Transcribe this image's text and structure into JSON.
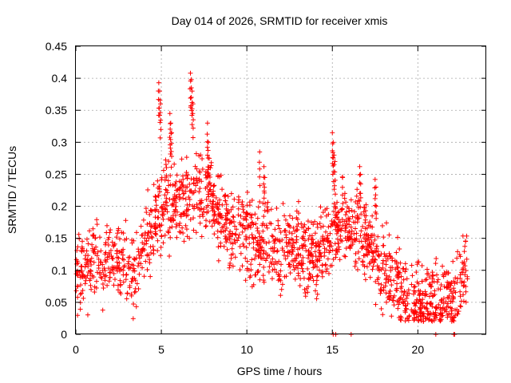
{
  "chart_data": {
    "type": "scatter",
    "title": "Day 014 of 2026, SRMTID for receiver xmis",
    "xlabel": "GPS time / hours",
    "ylabel": "SRMTID / TECUs",
    "xlim": [
      0,
      24
    ],
    "ylim": [
      0,
      0.45
    ],
    "x_ticks": [
      0,
      5,
      10,
      15,
      20
    ],
    "x_tick_labels": [
      "0",
      "5",
      "10",
      "15",
      "20"
    ],
    "y_ticks": [
      0,
      0.05,
      0.1,
      0.15,
      0.2,
      0.25,
      0.3,
      0.35,
      0.4,
      0.45
    ],
    "y_tick_labels": [
      "0",
      "0.05",
      "0.1",
      "0.15",
      "0.2",
      "0.25",
      "0.3",
      "0.35",
      "0.4",
      "0.45"
    ],
    "grid": true,
    "marker": "+",
    "series": [
      {
        "name": "SRMTID",
        "color": "#ff0000",
        "profile": {
          "x": [
            0,
            0.5,
            1,
            1.5,
            2,
            2.5,
            3,
            3.5,
            4,
            4.5,
            5,
            5.5,
            6,
            6.5,
            7,
            7.5,
            8,
            8.5,
            9,
            9.5,
            10,
            10.5,
            11,
            11.5,
            12,
            12.5,
            13,
            13.5,
            14,
            14.5,
            15,
            15.5,
            16,
            16.5,
            17,
            17.5,
            18,
            18.5,
            19,
            19.5,
            20,
            20.5,
            21,
            21.5,
            22,
            22.5,
            22.9
          ],
          "y": [
            0.09,
            0.1,
            0.11,
            0.115,
            0.12,
            0.11,
            0.1,
            0.09,
            0.14,
            0.17,
            0.19,
            0.2,
            0.2,
            0.21,
            0.22,
            0.21,
            0.2,
            0.18,
            0.16,
            0.16,
            0.15,
            0.14,
            0.14,
            0.13,
            0.13,
            0.14,
            0.13,
            0.12,
            0.12,
            0.13,
            0.15,
            0.17,
            0.16,
            0.16,
            0.15,
            0.12,
            0.1,
            0.09,
            0.07,
            0.05,
            0.05,
            0.05,
            0.05,
            0.05,
            0.05,
            0.08,
            0.1
          ]
        },
        "spread": 0.03,
        "sample_count": 1800,
        "seed": 14,
        "peaks": [
          {
            "x": 4.85,
            "y": 0.393
          },
          {
            "x": 4.9,
            "y": 0.38
          },
          {
            "x": 4.95,
            "y": 0.36
          },
          {
            "x": 5.5,
            "y": 0.345
          },
          {
            "x": 5.55,
            "y": 0.33
          },
          {
            "x": 5.6,
            "y": 0.315
          },
          {
            "x": 6.7,
            "y": 0.408
          },
          {
            "x": 6.75,
            "y": 0.398
          },
          {
            "x": 6.8,
            "y": 0.38
          },
          {
            "x": 6.85,
            "y": 0.36
          },
          {
            "x": 7.7,
            "y": 0.33
          },
          {
            "x": 7.75,
            "y": 0.3
          },
          {
            "x": 7.8,
            "y": 0.275
          },
          {
            "x": 10.75,
            "y": 0.285
          },
          {
            "x": 11,
            "y": 0.262
          },
          {
            "x": 11.05,
            "y": 0.245
          },
          {
            "x": 15.0,
            "y": 0.315
          },
          {
            "x": 15.05,
            "y": 0.3
          },
          {
            "x": 15.1,
            "y": 0.28
          },
          {
            "x": 15.15,
            "y": 0.27
          },
          {
            "x": 15.6,
            "y": 0.245
          },
          {
            "x": 16.6,
            "y": 0.262
          },
          {
            "x": 16.65,
            "y": 0.25
          },
          {
            "x": 17.5,
            "y": 0.242
          },
          {
            "x": 17.55,
            "y": 0.23
          }
        ],
        "zeros": [
          15.05,
          15.2,
          16.1,
          21.05,
          22.1,
          22.15
        ]
      }
    ]
  }
}
